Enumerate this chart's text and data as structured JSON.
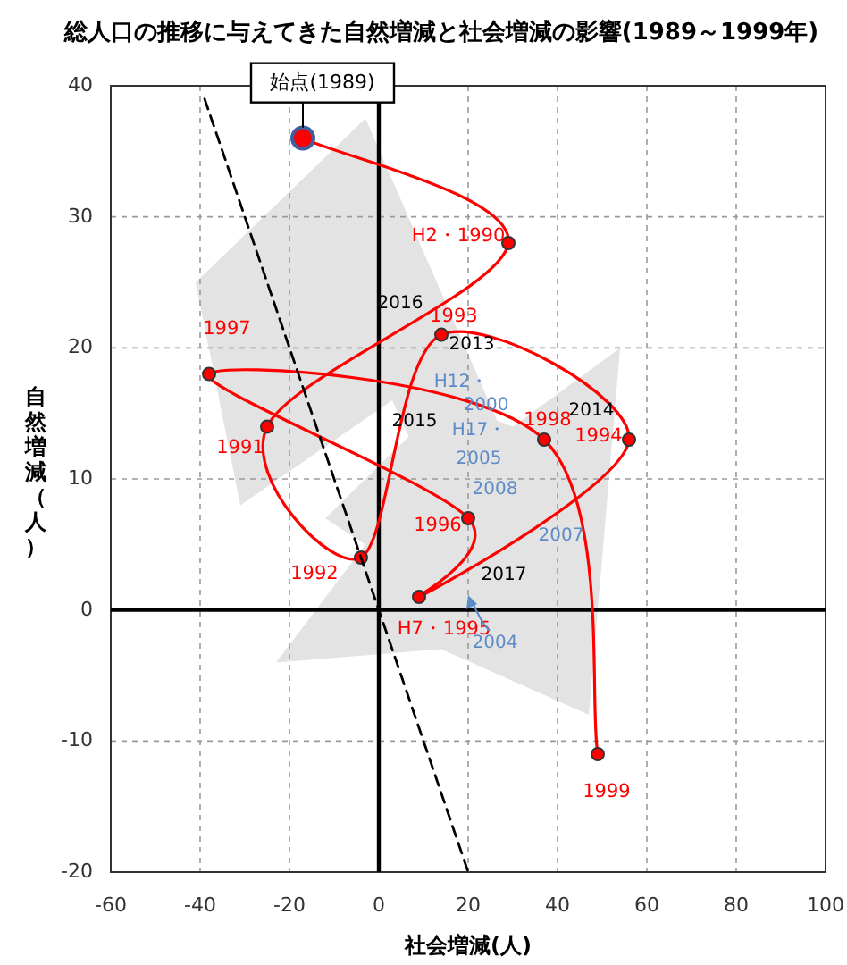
{
  "chart_data": {
    "type": "line",
    "title": "総人口の推移に与えてきた自然増減と社会増減の影響(1989～1999年)",
    "xlabel": "社会増減(人)",
    "ylabel": "自然増減（人）",
    "xlim": [
      -60,
      100
    ],
    "ylim": [
      -20,
      40
    ],
    "xticks": [
      -60,
      -40,
      -20,
      0,
      20,
      40,
      60,
      80,
      100
    ],
    "yticks": [
      -20,
      -10,
      0,
      10,
      20,
      30,
      40
    ],
    "grid": true,
    "legend": false,
    "series": [
      {
        "type": "line",
        "color": "#ff0000",
        "marker": "circle",
        "x": [
          -17,
          29,
          -25,
          -4,
          14,
          56,
          9,
          20,
          -38,
          37,
          49
        ],
        "values": [
          36,
          28,
          14,
          4,
          21,
          13,
          1,
          7,
          18,
          13,
          -11
        ]
      },
      {
        "type": "line",
        "color": "#000000",
        "marker": "none",
        "line_style": "dashed",
        "x": [
          -39,
          20
        ],
        "values": [
          39,
          -20
        ]
      }
    ],
    "annotations": [
      {
        "text": "始点(1989)",
        "x": -17,
        "y": 36
      },
      {
        "text": "H2・1990",
        "x": 29,
        "y": 28
      },
      {
        "text": "1991",
        "x": -25,
        "y": 14
      },
      {
        "text": "1992",
        "x": -4,
        "y": 4
      },
      {
        "text": "1993",
        "x": 14,
        "y": 21
      },
      {
        "text": "1994",
        "x": 56,
        "y": 13
      },
      {
        "text": "H7・1995",
        "x": 9,
        "y": 1
      },
      {
        "text": "1996",
        "x": 20,
        "y": 7
      },
      {
        "text": "1997",
        "x": -38,
        "y": 18
      },
      {
        "text": "1998",
        "x": 37,
        "y": 13
      },
      {
        "text": "1999",
        "x": 49,
        "y": -11
      },
      "2016",
      "2013",
      "H12・",
      "2000",
      "2015",
      "H17・",
      "2005",
      "2014",
      "2008",
      "2007",
      "2017",
      "2004"
    ]
  }
}
